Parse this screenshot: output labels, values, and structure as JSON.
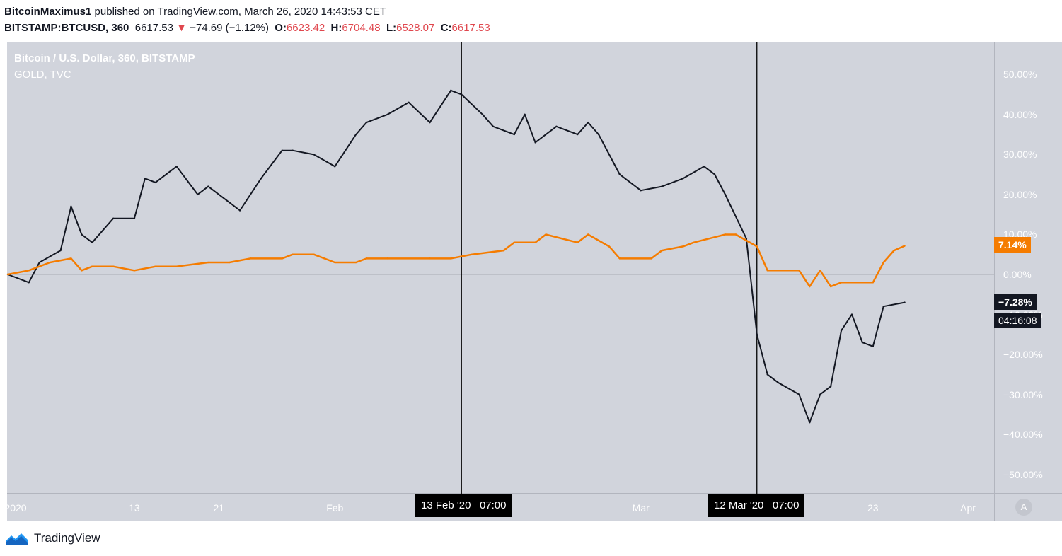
{
  "header": {
    "author": "BitcoinMaximus1",
    "published": "published on TradingView.com, March 26, 2020 14:43:53 CET",
    "symbol": "BITSTAMP:BTCUSD, 360",
    "last": "6617.53",
    "change": "−74.69 (−1.12%)",
    "o_label": "O:",
    "o_value": "6623.42",
    "h_label": "H:",
    "h_value": "6704.48",
    "l_label": "L:",
    "l_value": "6528.07",
    "c_label": "C:",
    "c_value": "6617.53"
  },
  "legend": {
    "main": "Bitcoin / U.S. Dollar, 360, BITSTAMP",
    "compare": "GOLD, TVC"
  },
  "badges": {
    "gold_value": "7.14%",
    "btc_value": "−7.28%",
    "countdown": "04:16:08"
  },
  "crosshair_labels": [
    {
      "date": "13 Feb '20",
      "time": "07:00"
    },
    {
      "date": "12 Mar '20",
      "time": "07:00"
    }
  ],
  "auto_button": "A",
  "footer": {
    "brand": "TradingView"
  },
  "colors": {
    "gold": "#f57c00",
    "btc": "#131722",
    "background": "#d1d4dc",
    "negative": "#e0474e"
  },
  "chart_data": {
    "type": "line",
    "y_unit": "%",
    "ylim": [
      -55,
      60
    ],
    "y_ticks": [
      "50.00%",
      "40.00%",
      "30.00%",
      "20.00%",
      "10.00%",
      "0.00%",
      "−10.00%",
      "−20.00%",
      "−30.00%",
      "−40.00%",
      "−50.00%"
    ],
    "y_tick_values": [
      50,
      40,
      30,
      20,
      10,
      0,
      -10,
      -20,
      -30,
      -40,
      -50
    ],
    "x_tick_labels": [
      "2020",
      "13",
      "21",
      "Feb",
      "13",
      "Mar",
      "23",
      "Apr"
    ],
    "x_tick_dates": [
      "2020-01-01",
      "2020-01-13",
      "2020-01-21",
      "2020-02-01",
      "2020-02-13",
      "2020-03-01",
      "2020-03-23",
      "2020-04-01"
    ],
    "vertical_markers": [
      "2020-02-13",
      "2020-03-12"
    ],
    "series": [
      {
        "name": "Bitcoin / U.S. Dollar, 360, BITSTAMP",
        "x": [
          "2020-01-01",
          "2020-01-03",
          "2020-01-04",
          "2020-01-06",
          "2020-01-07",
          "2020-01-08",
          "2020-01-09",
          "2020-01-11",
          "2020-01-13",
          "2020-01-14",
          "2020-01-15",
          "2020-01-17",
          "2020-01-19",
          "2020-01-20",
          "2020-01-22",
          "2020-01-23",
          "2020-01-25",
          "2020-01-27",
          "2020-01-28",
          "2020-01-30",
          "2020-02-01",
          "2020-02-03",
          "2020-02-04",
          "2020-02-06",
          "2020-02-08",
          "2020-02-10",
          "2020-02-12",
          "2020-02-13",
          "2020-02-15",
          "2020-02-16",
          "2020-02-18",
          "2020-02-19",
          "2020-02-20",
          "2020-02-22",
          "2020-02-24",
          "2020-02-25",
          "2020-02-26",
          "2020-02-28",
          "2020-03-01",
          "2020-03-03",
          "2020-03-05",
          "2020-03-07",
          "2020-03-08",
          "2020-03-09",
          "2020-03-11",
          "2020-03-12",
          "2020-03-13",
          "2020-03-14",
          "2020-03-16",
          "2020-03-17",
          "2020-03-18",
          "2020-03-19",
          "2020-03-20",
          "2020-03-21",
          "2020-03-22",
          "2020-03-23",
          "2020-03-24",
          "2020-03-26"
        ],
        "values": [
          0,
          -2,
          3,
          6,
          17,
          10,
          8,
          14,
          14,
          24,
          23,
          27,
          20,
          22,
          18,
          16,
          24,
          31,
          31,
          30,
          27,
          35,
          38,
          40,
          43,
          38,
          46,
          45,
          40,
          37,
          35,
          40,
          33,
          37,
          35,
          38,
          35,
          25,
          21,
          22,
          24,
          27,
          25,
          20,
          9,
          -15,
          -25,
          -27,
          -30,
          -37,
          -30,
          -28,
          -14,
          -10,
          -17,
          -18,
          -8,
          -7
        ]
      },
      {
        "name": "GOLD, TVC",
        "x": [
          "2020-01-01",
          "2020-01-03",
          "2020-01-05",
          "2020-01-07",
          "2020-01-08",
          "2020-01-09",
          "2020-01-11",
          "2020-01-13",
          "2020-01-15",
          "2020-01-17",
          "2020-01-20",
          "2020-01-22",
          "2020-01-24",
          "2020-01-27",
          "2020-01-28",
          "2020-01-30",
          "2020-02-01",
          "2020-02-03",
          "2020-02-04",
          "2020-02-06",
          "2020-02-10",
          "2020-02-12",
          "2020-02-14",
          "2020-02-17",
          "2020-02-18",
          "2020-02-20",
          "2020-02-21",
          "2020-02-24",
          "2020-02-25",
          "2020-02-27",
          "2020-02-28",
          "2020-03-02",
          "2020-03-03",
          "2020-03-05",
          "2020-03-06",
          "2020-03-09",
          "2020-03-10",
          "2020-03-12",
          "2020-03-13",
          "2020-03-16",
          "2020-03-17",
          "2020-03-18",
          "2020-03-19",
          "2020-03-20",
          "2020-03-23",
          "2020-03-24",
          "2020-03-25",
          "2020-03-26"
        ],
        "values": [
          0,
          1,
          3,
          4,
          1,
          2,
          2,
          1,
          2,
          2,
          3,
          3,
          4,
          4,
          5,
          5,
          3,
          3,
          4,
          4,
          4,
          4,
          5,
          6,
          8,
          8,
          10,
          8,
          10,
          7,
          4,
          4,
          6,
          7,
          8,
          10,
          10,
          7,
          1,
          1,
          -3,
          1,
          -3,
          -2,
          -2,
          3,
          6,
          7.14
        ]
      }
    ]
  }
}
